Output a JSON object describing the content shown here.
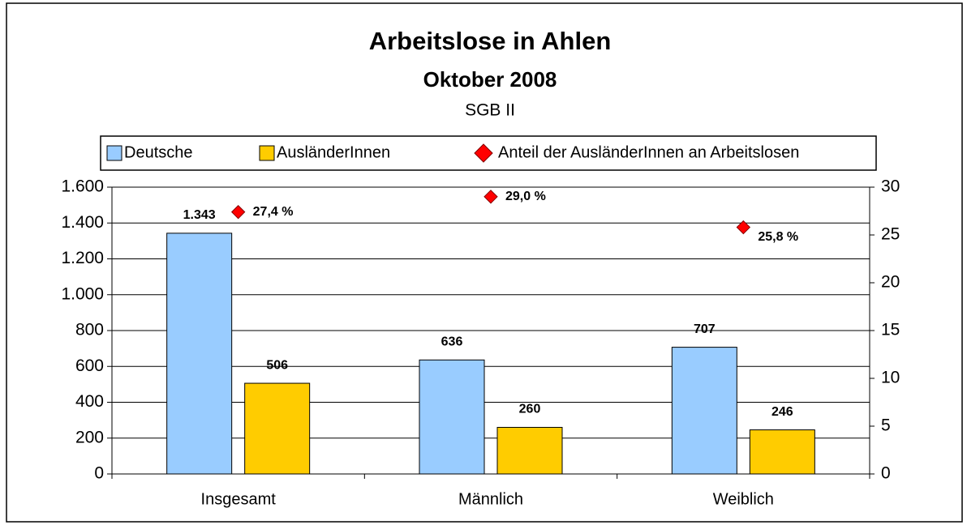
{
  "chart_data": {
    "type": "bar",
    "title": "Arbeitslose in Ahlen",
    "subtitle": "Oktober 2008",
    "annotation": "SGB II",
    "categories": [
      "Insgesamt",
      "Männlich",
      "Weiblich"
    ],
    "series": [
      {
        "name": "Deutsche",
        "color": "#99ccff",
        "values": [
          1343,
          636,
          707
        ],
        "value_labels": [
          "1.343",
          "636",
          "707"
        ]
      },
      {
        "name": "AusländerInnen",
        "color": "#ffcc00",
        "values": [
          506,
          260,
          246
        ],
        "value_labels": [
          "506",
          "260",
          "246"
        ]
      },
      {
        "name": "Anteil der AusländerInnen an Arbeitslosen",
        "color": "#ff0000",
        "type": "scatter",
        "axis": "y2",
        "values": [
          27.4,
          29.0,
          25.8
        ],
        "value_labels": [
          "27,4 %",
          "29,0  %",
          "25,8 %"
        ]
      }
    ],
    "ylim": [
      0,
      1600
    ],
    "yticks": [
      0,
      200,
      400,
      600,
      800,
      {
        "value": 1000,
        "label": "1.000"
      },
      {
        "value": 1200,
        "label": "1.200"
      },
      {
        "value": 1400,
        "label": "1.400"
      },
      {
        "value": 1600,
        "label": "1.600"
      }
    ],
    "y2lim": [
      0,
      30
    ],
    "y2ticks": [
      0,
      5,
      10,
      15,
      20,
      25,
      30
    ],
    "grid": true,
    "legend": "top"
  }
}
